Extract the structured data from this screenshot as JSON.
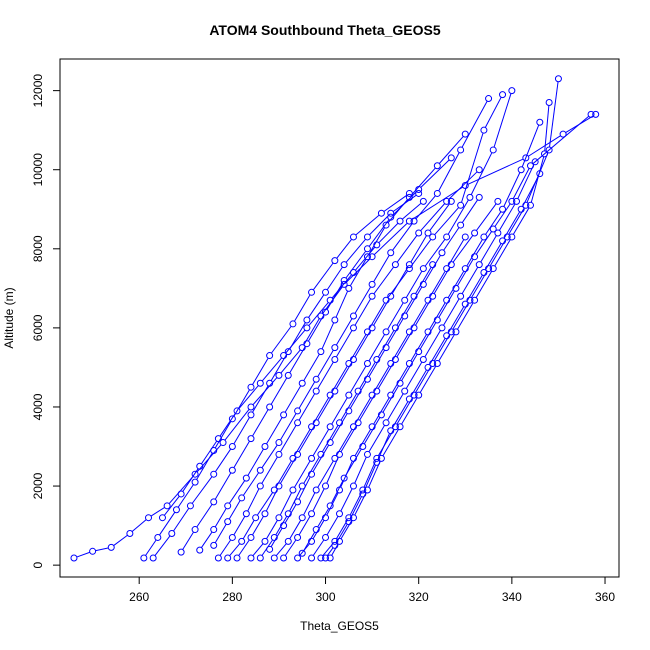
{
  "chart_data": {
    "type": "line",
    "title": "ATOM4 Southbound Theta_GEOS5",
    "xlabel": "Theta_GEOS5",
    "ylabel": "Altitude (m)",
    "xlim": [
      243,
      363
    ],
    "ylim": [
      -300,
      12800
    ],
    "xticks": [
      260,
      280,
      300,
      320,
      340,
      360
    ],
    "yticks": [
      0,
      2000,
      4000,
      6000,
      8000,
      10000,
      12000
    ],
    "xtick_labels": [
      "260",
      "280",
      "300",
      "320",
      "340",
      "360"
    ],
    "ytick_labels": [
      "0",
      "2000",
      "4000",
      "6000",
      "8000",
      "10000",
      "12000"
    ],
    "grid": false,
    "marker": "open-circle",
    "series_color": "#0000ff",
    "series": [
      {
        "x": [
          246,
          250,
          254,
          258,
          262,
          266,
          272,
          278,
          284,
          290,
          295,
          299,
          304,
          310,
          318,
          330,
          343,
          351,
          358
        ],
        "y": [
          180,
          350,
          450,
          800,
          1200,
          1500,
          2300,
          3100,
          4000,
          4800,
          5500,
          6300,
          7100,
          7800,
          8700,
          9600,
          10300,
          10900,
          11400
        ]
      },
      {
        "x": [
          261,
          264,
          268,
          272,
          276,
          280,
          284,
          288,
          293,
          297,
          302,
          306,
          312,
          318
        ],
        "y": [
          180,
          700,
          1400,
          2100,
          2900,
          3700,
          4500,
          5300,
          6100,
          6900,
          7700,
          8300,
          8900,
          9400
        ]
      },
      {
        "x": [
          263,
          267,
          271,
          276,
          280,
          284,
          288,
          292,
          296,
          300,
          304,
          309,
          314,
          320
        ],
        "y": [
          180,
          800,
          1500,
          2300,
          3000,
          3800,
          4600,
          5400,
          6200,
          6900,
          7600,
          8300,
          8900,
          9400
        ]
      },
      {
        "x": [
          269,
          272,
          276,
          280,
          284,
          288,
          292,
          296,
          300,
          304,
          309,
          314,
          320,
          327
        ],
        "y": [
          330,
          900,
          1600,
          2400,
          3200,
          4000,
          4800,
          5600,
          6400,
          7200,
          8000,
          8800,
          9500,
          10300
        ]
      },
      {
        "x": [
          273,
          276,
          279,
          283,
          287,
          291,
          295,
          299,
          302,
          305,
          309,
          313,
          318,
          324,
          330
        ],
        "y": [
          380,
          900,
          1500,
          2200,
          3000,
          3800,
          4600,
          5400,
          6200,
          7000,
          7800,
          8600,
          9300,
          10100,
          10900
        ]
      },
      {
        "x": [
          277,
          280,
          283,
          286,
          290,
          294,
          298,
          302,
          306,
          310,
          315,
          320,
          326,
          333
        ],
        "y": [
          180,
          700,
          1300,
          2000,
          2800,
          3600,
          4400,
          5200,
          6000,
          6800,
          7600,
          8400,
          9200,
          10000
        ]
      },
      {
        "x": [
          279,
          282,
          285,
          289,
          293,
          297,
          301,
          305,
          309,
          313,
          318,
          323,
          329,
          334,
          338
        ],
        "y": [
          180,
          600,
          1200,
          1900,
          2700,
          3500,
          4300,
          5100,
          5900,
          6700,
          7500,
          8300,
          9100,
          11000,
          11900
        ]
      },
      {
        "x": [
          281,
          284,
          287,
          290,
          294,
          298,
          302,
          306,
          310,
          314,
          318,
          322,
          327
        ],
        "y": [
          180,
          700,
          1300,
          2000,
          2800,
          3600,
          4400,
          5200,
          6000,
          6800,
          7600,
          8400,
          9200
        ]
      },
      {
        "x": [
          284,
          287,
          290,
          293,
          297,
          301,
          305,
          309,
          313,
          317,
          321,
          326,
          331,
          336,
          340
        ],
        "y": [
          180,
          600,
          1200,
          1900,
          2700,
          3500,
          4300,
          5100,
          5900,
          6700,
          7500,
          8300,
          9300,
          10500,
          12000
        ]
      },
      {
        "x": [
          286,
          289,
          292,
          295,
          299,
          303,
          307,
          311,
          315,
          319,
          323
        ],
        "y": [
          180,
          700,
          1300,
          2000,
          2800,
          3600,
          4400,
          5200,
          6000,
          6800,
          7600
        ]
      },
      {
        "x": [
          289,
          292,
          295,
          298,
          302,
          306,
          310,
          314,
          318,
          322,
          326,
          330
        ],
        "y": [
          180,
          600,
          1200,
          1900,
          2700,
          3500,
          4300,
          5100,
          5900,
          6700,
          7500,
          8300
        ]
      },
      {
        "x": [
          291,
          294,
          297,
          300,
          303,
          307,
          311,
          315,
          319,
          323,
          327,
          332,
          337
        ],
        "y": [
          180,
          700,
          1300,
          2000,
          2800,
          3600,
          4400,
          5200,
          6000,
          6800,
          7600,
          8400,
          9200
        ]
      },
      {
        "x": [
          294,
          297,
          300,
          303,
          306,
          310,
          314,
          318,
          322,
          326,
          330,
          334,
          338,
          342,
          346
        ],
        "y": [
          180,
          600,
          1200,
          1900,
          2700,
          3500,
          4300,
          5100,
          5900,
          6700,
          7500,
          8300,
          9000,
          10000,
          11200
        ]
      },
      {
        "x": [
          297,
          300,
          303,
          306,
          309,
          313,
          317,
          321,
          325,
          329,
          333,
          337,
          341,
          345
        ],
        "y": [
          180,
          700,
          1300,
          2000,
          2800,
          3600,
          4400,
          5200,
          6000,
          6800,
          7600,
          8400,
          9200,
          10200
        ]
      },
      {
        "x": [
          299,
          302,
          305,
          308,
          311,
          315,
          319,
          323,
          327,
          331,
          335,
          339,
          343,
          348,
          350
        ],
        "y": [
          180,
          600,
          1200,
          1900,
          2700,
          3500,
          4300,
          5100,
          5900,
          6700,
          7500,
          8300,
          9100,
          10500,
          12300
        ]
      },
      {
        "x": [
          300,
          302,
          305,
          308,
          311,
          314,
          318,
          322,
          326,
          330,
          334,
          338,
          342,
          346
        ],
        "y": [
          180,
          500,
          1100,
          1800,
          2600,
          3400,
          4200,
          5000,
          5800,
          6600,
          7400,
          8200,
          9000,
          9900
        ]
      },
      {
        "x": [
          301,
          303,
          306,
          309,
          312,
          316,
          320,
          324,
          328,
          332,
          336,
          340,
          344,
          347,
          348
        ],
        "y": [
          180,
          600,
          1200,
          1900,
          2700,
          3500,
          4300,
          5100,
          5900,
          6700,
          7500,
          8300,
          9100,
          10400,
          11700
        ]
      },
      {
        "x": [
          265,
          269,
          273,
          277,
          281,
          286,
          291,
          296,
          301,
          306,
          311,
          316,
          321
        ],
        "y": [
          1200,
          1800,
          2500,
          3200,
          3900,
          4600,
          5300,
          6000,
          6700,
          7400,
          8100,
          8700,
          9200
        ]
      },
      {
        "x": [
          276,
          279,
          282,
          286,
          290,
          294,
          298,
          302,
          306,
          310,
          314,
          319,
          324,
          329,
          335
        ],
        "y": [
          500,
          1100,
          1700,
          2400,
          3100,
          3900,
          4700,
          5500,
          6300,
          7100,
          7900,
          8700,
          9400,
          10500,
          11800
        ]
      },
      {
        "x": [
          288,
          291,
          294,
          297,
          301,
          305,
          309,
          313,
          317,
          321,
          325,
          329,
          333
        ],
        "y": [
          400,
          1000,
          1600,
          2300,
          3100,
          3900,
          4700,
          5500,
          6300,
          7100,
          7900,
          8600,
          9300
        ]
      },
      {
        "x": [
          295,
          298,
          301,
          304,
          308,
          312,
          316,
          320,
          324,
          328,
          332,
          336,
          340,
          344,
          357
        ],
        "y": [
          300,
          900,
          1500,
          2200,
          3000,
          3800,
          4600,
          5400,
          6200,
          7000,
          7800,
          8500,
          9200,
          10100,
          11400
        ]
      }
    ]
  }
}
